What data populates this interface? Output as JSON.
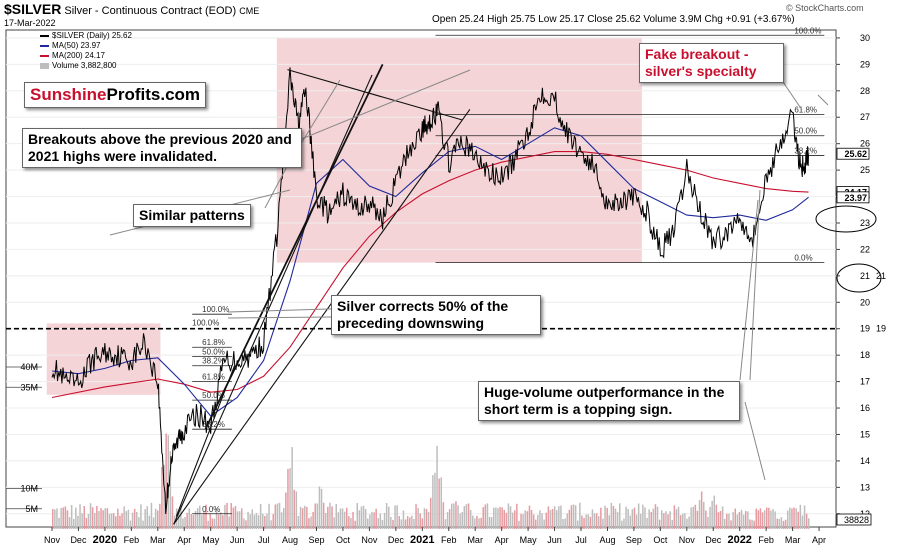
{
  "header": {
    "symbol": "$SILVER",
    "name": "Silver - Continuous Contract (EOD)",
    "exchange": "CME",
    "date": "17-Mar-2022",
    "open_label": "Open",
    "open": "25.24",
    "high_label": "High",
    "high": "25.75",
    "low_label": "Low",
    "low": "25.17",
    "close_label": "Close",
    "close": "25.62",
    "volume_label": "Volume",
    "volume": "3.9M",
    "chg_label": "Chg",
    "chg": "+0.91 (+3.67%)",
    "credit": "© StockCharts.com"
  },
  "legend": {
    "price": "$SILVER (Daily) 25.62",
    "ma50": "MA(50) 23.97",
    "ma200": "MA(200) 24.17",
    "volume": "Volume 3,882,800"
  },
  "logo": {
    "part1": "Sunshine",
    "part2": "Profits.com"
  },
  "callouts": {
    "breakouts": "Breakouts above the previous 2020 and 2021 highs were invalidated.",
    "similar": "Similar patterns",
    "corrects": "Silver corrects 50% of the preceding downswing",
    "fake": "Fake breakout - silver's specialty",
    "volume": "Huge-volume outperformance in the short term is a topping sign."
  },
  "colors": {
    "price_line": "#000000",
    "ma50": "#1f2a9c",
    "ma200": "#c8102e",
    "zone_fill": "#f2c6c9",
    "volume_bar": "#bdbdbd",
    "volume_bar_alt": "#e79aa0",
    "callout_red": "#c8102e"
  },
  "chart_data": {
    "type": "line",
    "title": "$SILVER Silver - Continuous Contract (EOD) CME",
    "ylim": [
      11.5,
      30.3
    ],
    "y_ticks": [
      12,
      13,
      14,
      15,
      16,
      17,
      18,
      19,
      20,
      21,
      22,
      23,
      24,
      25,
      26,
      27,
      28,
      29,
      30
    ],
    "x_ticks": [
      "Nov",
      "Dec",
      "2020",
      "Feb",
      "Mar",
      "Apr",
      "May",
      "Jun",
      "Jul",
      "Aug",
      "Sep",
      "Oct",
      "Nov",
      "Dec",
      "2021",
      "Feb",
      "Mar",
      "Apr",
      "May",
      "Jun",
      "Jul",
      "Aug",
      "Sep",
      "Oct",
      "Nov",
      "Dec",
      "2022",
      "Feb",
      "Mar",
      "Apr"
    ],
    "x_tick_pos": [
      0,
      1,
      2,
      3,
      4,
      5,
      6,
      7,
      8,
      9,
      10,
      11,
      12,
      13,
      14,
      15,
      16,
      17,
      18,
      19,
      20,
      21,
      22,
      23,
      24,
      25,
      26,
      27,
      28,
      29
    ],
    "price": {
      "x": [
        0,
        0.5,
        1,
        1.5,
        2,
        2.5,
        3,
        3.5,
        4.0,
        4.3,
        4.5,
        4.8,
        5.0,
        5.5,
        6.0,
        6.5,
        7.0,
        7.5,
        8.0,
        8.5,
        9.0,
        9.3,
        9.6,
        10.0,
        10.5,
        11.0,
        11.5,
        12.0,
        12.5,
        13.0,
        13.5,
        14.0,
        14.3,
        14.6,
        15.0,
        15.5,
        16.0,
        16.5,
        17.0,
        17.5,
        18.0,
        18.5,
        19.0,
        19.5,
        20.0,
        20.5,
        21.0,
        21.5,
        22.0,
        22.5,
        23.0,
        23.5,
        24.0,
        24.5,
        25.0,
        25.5,
        26.0,
        26.5,
        27.0,
        27.5,
        28.0,
        28.3,
        28.5,
        28.6
      ],
      "values": [
        17.6,
        17.0,
        16.9,
        17.8,
        18.1,
        18.0,
        17.8,
        18.5,
        17.0,
        12.2,
        14.0,
        14.9,
        15.2,
        15.8,
        15.3,
        17.8,
        17.8,
        18.0,
        18.5,
        22.5,
        28.5,
        26.8,
        28.0,
        24.0,
        23.3,
        24.1,
        23.6,
        23.7,
        23.2,
        24.5,
        25.8,
        26.5,
        26.9,
        27.2,
        25.3,
        26.1,
        25.5,
        24.9,
        24.7,
        25.4,
        26.5,
        28.0,
        27.7,
        26.3,
        25.7,
        25.1,
        23.7,
        23.9,
        23.9,
        23.4,
        22.0,
        22.6,
        25.0,
        23.5,
        22.3,
        22.6,
        23.3,
        22.4,
        24.6,
        26.0,
        27.0,
        25.1,
        25.3,
        25.6
      ]
    },
    "ma50": {
      "x": [
        0,
        1,
        2,
        3,
        4,
        5,
        6,
        7,
        8,
        9,
        10,
        11,
        12,
        13,
        14,
        15,
        16,
        17,
        18,
        19,
        20,
        21,
        22,
        23,
        24,
        25,
        26,
        27,
        28,
        28.6
      ],
      "values": [
        17.4,
        17.3,
        17.5,
        17.8,
        17.9,
        16.9,
        15.7,
        16.4,
        17.8,
        20.8,
        24.5,
        25.4,
        24.4,
        24.0,
        24.9,
        25.7,
        25.9,
        25.4,
        26.0,
        26.6,
        26.3,
        25.3,
        24.3,
        23.8,
        23.3,
        23.2,
        23.3,
        23.1,
        23.5,
        23.97
      ]
    },
    "ma200": {
      "x": [
        0,
        2,
        4,
        5,
        6,
        7,
        8,
        9,
        10,
        11,
        12,
        13,
        14,
        15,
        16,
        17,
        18,
        19,
        20,
        21,
        22,
        23,
        24,
        25,
        26,
        27,
        28,
        28.6
      ],
      "values": [
        16.4,
        16.8,
        17.1,
        16.9,
        16.6,
        16.7,
        17.2,
        18.3,
        19.8,
        21.3,
        22.5,
        23.4,
        24.1,
        24.6,
        25.0,
        25.3,
        25.5,
        25.7,
        25.7,
        25.6,
        25.4,
        25.2,
        25.0,
        24.7,
        24.5,
        24.3,
        24.2,
        24.17
      ]
    },
    "volume": {
      "y_ticks": [
        5,
        10,
        35,
        40
      ],
      "y_tick_labels": [
        "5M",
        "10M",
        "35M",
        "40M"
      ],
      "current_label": "38828",
      "spikes": [
        [
          4.3,
          30
        ],
        [
          9.0,
          22
        ],
        [
          10.1,
          12
        ],
        [
          14.5,
          26
        ],
        [
          15.2,
          9
        ],
        [
          19.0,
          8
        ],
        [
          24.5,
          11
        ],
        [
          25.0,
          9
        ],
        [
          26.0,
          6
        ],
        [
          27.0,
          6.5
        ],
        [
          28.2,
          7
        ]
      ]
    },
    "zones": [
      {
        "x0": -0.2,
        "x1": 4.1,
        "y0": 16.5,
        "y1": 19.2
      },
      {
        "x0": 8.5,
        "x1": 22.3,
        "y0": 21.5,
        "y1": 30.0
      }
    ],
    "hlines": [
      {
        "y": 30.1,
        "x0": 14.5,
        "x1": 29.2,
        "label": "100.0%"
      },
      {
        "y": 27.1,
        "x0": 14.5,
        "x1": 29.2,
        "label": "61.8%"
      },
      {
        "y": 26.3,
        "x0": 14.5,
        "x1": 29.2,
        "label": "50.0%"
      },
      {
        "y": 25.55,
        "x0": 14.5,
        "x1": 29.2,
        "label": "38.2%"
      },
      {
        "y": 21.5,
        "x0": 14.5,
        "x1": 29.2,
        "label": "0.0%"
      },
      {
        "y": 19.55,
        "x0": 5.3,
        "x1": 6.8,
        "label": "100.0%"
      },
      {
        "y": 18.3,
        "x0": 5.3,
        "x1": 6.8,
        "label": "61.8%"
      },
      {
        "y": 17.95,
        "x0": 5.3,
        "x1": 6.8,
        "label": "50.0%"
      },
      {
        "y": 17.6,
        "x0": 5.3,
        "x1": 6.8,
        "label": "38.2%"
      },
      {
        "y": 17.0,
        "x0": 5.3,
        "x1": 6.8,
        "label": "61.8%"
      },
      {
        "y": 16.3,
        "x0": 5.3,
        "x1": 6.8,
        "label": "50.0%"
      },
      {
        "y": 15.2,
        "x0": 5.3,
        "x1": 6.8,
        "label": "38.2%"
      },
      {
        "y": 12.0,
        "x0": 5.3,
        "x1": 6.8,
        "label": "0.0%"
      }
    ],
    "dashed_line": {
      "y": 19.0,
      "label": "100.0%"
    },
    "ellipse_labels": [
      "19",
      "21"
    ],
    "right_price_labels": [
      {
        "y": 25.62,
        "text": "25.62"
      },
      {
        "y": 24.17,
        "text": "24.17"
      },
      {
        "y": 23.97,
        "text": "23.97"
      }
    ]
  }
}
